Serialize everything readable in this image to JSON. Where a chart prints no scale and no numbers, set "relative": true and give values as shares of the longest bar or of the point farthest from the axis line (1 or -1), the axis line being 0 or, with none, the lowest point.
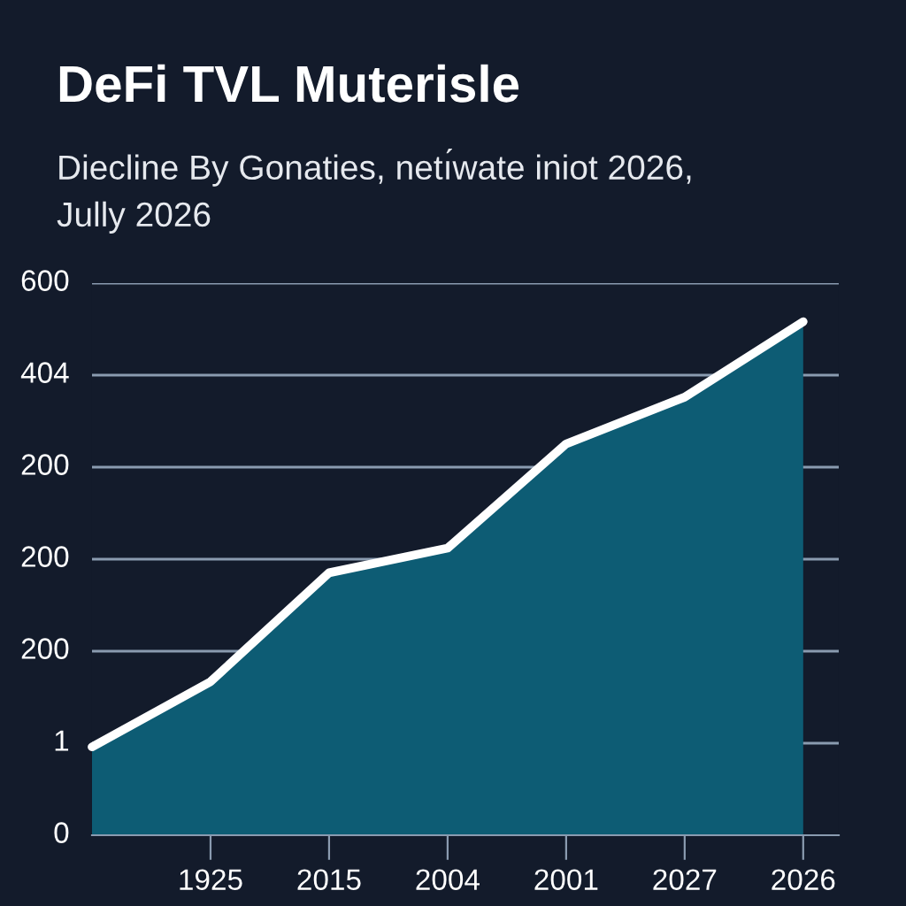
{
  "chart_data": {
    "type": "area",
    "title": "DeFi TVL Muterisle",
    "subtitle": "Diecline By Gonaties, netı́wate iniot 2026,\nJully 2026",
    "categories": [
      null,
      "1925",
      "2015",
      "2004",
      "2001",
      "2027",
      "2026"
    ],
    "relative": true,
    "series": [
      {
        "color": "#ffffff",
        "values": [
          0.172,
          0.299,
          0.511,
          0.559,
          0.762,
          0.853,
          1
        ]
      }
    ],
    "annotations": [
      "0",
      "1",
      "200",
      "200",
      "200",
      "404",
      "600"
    ],
    "grid": "y",
    "marker": "none",
    "line_style": "solid"
  }
}
